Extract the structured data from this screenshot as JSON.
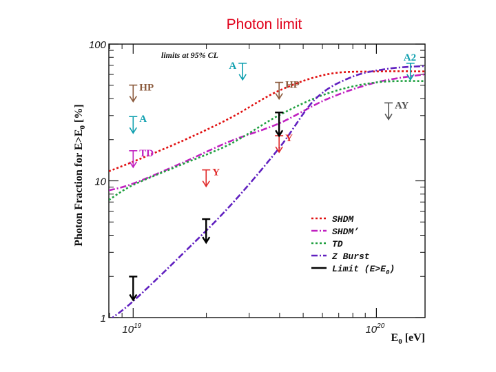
{
  "slide_title": "Photon limit",
  "colors": {
    "title": "#e0001a",
    "SHDM": "#e01010",
    "SHDM_prime": "#c020c0",
    "TD": "#20a040",
    "Z_Burst": "#6020c0",
    "Limit": "#000000",
    "HP": "#8b5a3c",
    "A": "#10a0b0",
    "Y": "#e02828",
    "TD_exp": "#c020c0",
    "AY": "#555555",
    "A2": "#10a0b0"
  },
  "chart_data": {
    "type": "line",
    "title": "",
    "xlabel_main": "E",
    "xlabel_sub": "0",
    "xlabel_rest": " [eV]",
    "ylabel_main": "Photon Fraction for E>E",
    "ylabel_sub": "0",
    "ylabel_rest": " [%]",
    "x_scale": "log10",
    "y_scale": "log10",
    "xlim": [
      18.9,
      20.2
    ],
    "ylim": [
      0,
      2
    ],
    "x_ticks": [
      {
        "pos": 19,
        "base": "10",
        "exp": "19"
      },
      {
        "pos": 20,
        "base": "10",
        "exp": "20"
      }
    ],
    "y_ticks": [
      {
        "pos": 0,
        "label": "1"
      },
      {
        "pos": 1,
        "label": "10"
      },
      {
        "pos": 2,
        "label": "100"
      }
    ],
    "annotation": "limits at 95% CL",
    "legend_position": "bottom-right",
    "series": [
      {
        "key": "SHDM",
        "name": "SHDM",
        "style": "dotted",
        "x": [
          18.9,
          19.0,
          19.2,
          19.4,
          19.6,
          19.8,
          20.0,
          20.2
        ],
        "y": [
          1.07,
          1.14,
          1.29,
          1.46,
          1.66,
          1.78,
          1.8,
          1.8
        ]
      },
      {
        "key": "SHDM_prime",
        "name": "SHDM’",
        "style": "dashdot",
        "x": [
          18.9,
          19.0,
          19.2,
          19.4,
          19.6,
          19.8,
          20.0,
          20.2
        ],
        "y": [
          0.93,
          0.98,
          1.13,
          1.29,
          1.42,
          1.6,
          1.72,
          1.78
        ]
      },
      {
        "key": "TD",
        "name": "TD",
        "style": "dotted",
        "x": [
          18.9,
          19.0,
          19.2,
          19.4,
          19.6,
          19.8,
          20.0,
          20.2
        ],
        "y": [
          0.86,
          0.97,
          1.12,
          1.27,
          1.48,
          1.64,
          1.72,
          1.73
        ]
      },
      {
        "key": "Z_Burst",
        "name": "Z Burst",
        "style": "dashdot",
        "x": [
          18.9,
          19.0,
          19.2,
          19.4,
          19.6,
          19.75,
          19.9,
          20.05,
          20.2
        ],
        "y": [
          -0.02,
          0.12,
          0.46,
          0.82,
          1.24,
          1.6,
          1.76,
          1.82,
          1.84
        ]
      },
      {
        "key": "Limit",
        "name": "Limit (E>E0)",
        "legend_main": "Limit (E>E",
        "legend_sub": "0",
        "legend_rest": ")",
        "style": "solid",
        "points": [
          {
            "x": 19.0,
            "y": 0.3
          },
          {
            "x": 19.3,
            "y": 0.72
          },
          {
            "x": 19.6,
            "y": 1.5
          }
        ]
      }
    ],
    "experiment_limits": [
      {
        "label": "HP",
        "color_key": "HP",
        "x": 19.0,
        "y": 1.7
      },
      {
        "label": "A",
        "color_key": "A",
        "x": 19.0,
        "y": 1.47
      },
      {
        "label": "TD",
        "color_key": "TD_exp",
        "x": 19.0,
        "y": 1.22
      },
      {
        "label": "Y",
        "color_key": "Y",
        "x": 19.3,
        "y": 1.08
      },
      {
        "label": "A",
        "color_key": "A",
        "x": 19.45,
        "y": 1.86
      },
      {
        "label": "HP",
        "color_key": "HP",
        "x": 19.6,
        "y": 1.72
      },
      {
        "label": "Y",
        "color_key": "Y",
        "x": 19.6,
        "y": 1.33
      },
      {
        "label": "AY",
        "color_key": "AY",
        "x": 20.05,
        "y": 1.57
      },
      {
        "label": "A2",
        "color_key": "A2",
        "x": 20.12,
        "y": 1.86
      }
    ]
  }
}
